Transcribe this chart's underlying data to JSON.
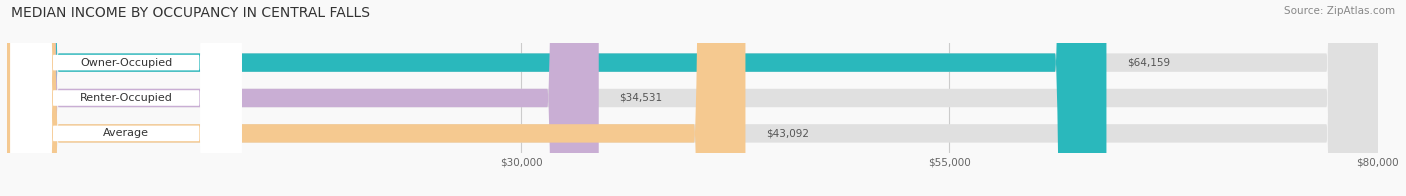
{
  "title": "MEDIAN INCOME BY OCCUPANCY IN CENTRAL FALLS",
  "source": "Source: ZipAtlas.com",
  "categories": [
    "Owner-Occupied",
    "Renter-Occupied",
    "Average"
  ],
  "values": [
    64159,
    34531,
    43092
  ],
  "labels": [
    "$64,159",
    "$34,531",
    "$43,092"
  ],
  "bar_colors": [
    "#2ab8bc",
    "#c9aed4",
    "#f5c990"
  ],
  "bar_bg_color": "#e0e0e0",
  "label_bg_color": "#ffffff",
  "xlim_min": 0,
  "xlim_max": 80000,
  "xticks": [
    30000,
    55000,
    80000
  ],
  "xticklabels": [
    "$30,000",
    "$55,000",
    "$80,000"
  ],
  "title_fontsize": 10,
  "source_fontsize": 7.5,
  "value_fontsize": 7.5,
  "cat_fontsize": 8,
  "tick_fontsize": 7.5,
  "bar_height": 0.52,
  "figsize": [
    14.06,
    1.96
  ],
  "dpi": 100,
  "bg_color": "#f9f9f9"
}
